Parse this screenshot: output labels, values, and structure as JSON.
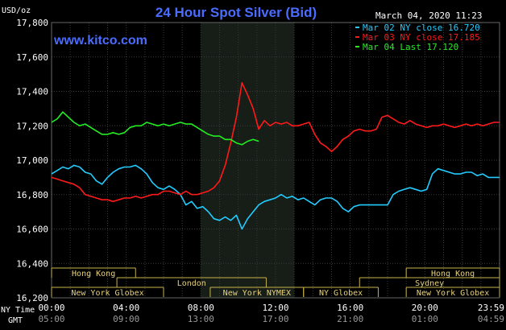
{
  "chart_data": {
    "type": "line",
    "title": "24 Hour Spot Silver (Bid)",
    "website": "www.kitco.com",
    "timestamp": "March 04, 2020 11:23",
    "unit_label": "USD/oz",
    "ylim": [
      16.2,
      17.8
    ],
    "y_ticks": [
      16.2,
      16.4,
      16.6,
      16.8,
      17.0,
      17.2,
      17.4,
      17.6,
      17.8
    ],
    "y_tick_labels": [
      "16,200",
      "16,400",
      "16,600",
      "16,800",
      "17,000",
      "17,200",
      "17,400",
      "17,600",
      "17,800"
    ],
    "xlim": [
      0,
      24
    ],
    "x_ticks": [
      0,
      4,
      8,
      12,
      16,
      20,
      24
    ],
    "x_row_labels": {
      "ny_time": "NY Time",
      "gmt": "GMT"
    },
    "x_tick_labels_ny": [
      "00:00",
      "04:00",
      "08:00",
      "12:00",
      "16:00",
      "20:00",
      "23:59"
    ],
    "x_tick_labels_gmt": [
      "05:00",
      "09:00",
      "13:00",
      "17:00",
      "21:00",
      "01:00",
      "04:59"
    ],
    "highlight_band": {
      "start": 8.0,
      "end": 13.0
    },
    "legend": [
      {
        "label": "Mar 02 NY close 16.720",
        "color": "#22ccff"
      },
      {
        "label": "Mar 03 NY close 17.185",
        "color": "#ff1a1a"
      },
      {
        "label": "Mar 04 Last 17.120",
        "color": "#22ee22"
      }
    ],
    "sessions": [
      {
        "label": "Hong Kong",
        "start": 0.0,
        "end": 4.5,
        "row": 0
      },
      {
        "label": "Hong Kong",
        "start": 19.0,
        "end": 24.0,
        "row": 0
      },
      {
        "label": "London",
        "start": 3.5,
        "end": 11.5,
        "row": 1
      },
      {
        "label": "Sydney",
        "start": 16.5,
        "end": 24.0,
        "row": 1
      },
      {
        "label": "New York Globex",
        "start": 0.0,
        "end": 6.0,
        "row": 2
      },
      {
        "label": "New York NYMEX",
        "start": 8.5,
        "end": 13.5,
        "row": 2
      },
      {
        "label": "NY Globex",
        "start": 13.5,
        "end": 17.5,
        "row": 2
      },
      {
        "label": "New York Globex",
        "start": 19.0,
        "end": 24.0,
        "row": 2
      }
    ],
    "series": [
      {
        "color": "#22ccff",
        "x": [
          0,
          0.3,
          0.6,
          0.9,
          1.2,
          1.5,
          1.8,
          2.1,
          2.4,
          2.7,
          3.0,
          3.3,
          3.6,
          3.9,
          4.2,
          4.5,
          4.8,
          5.1,
          5.4,
          5.7,
          6.0,
          6.3,
          6.6,
          6.9,
          7.2,
          7.5,
          7.8,
          8.1,
          8.4,
          8.7,
          9.0,
          9.3,
          9.6,
          9.9,
          10.2,
          10.5,
          10.8,
          11.1,
          11.4,
          11.7,
          12.0,
          12.3,
          12.6,
          12.9,
          13.2,
          13.5,
          13.8,
          14.1,
          14.4,
          14.7,
          15.0,
          15.3,
          15.6,
          15.9,
          16.2,
          16.5,
          16.8,
          17.1,
          17.4,
          17.7,
          18.0,
          18.3,
          18.6,
          18.9,
          19.2,
          19.5,
          19.8,
          20.1,
          20.4,
          20.7,
          21.0,
          21.3,
          21.6,
          21.9,
          22.2,
          22.5,
          22.8,
          23.1,
          23.4,
          23.7,
          24.0
        ],
        "y": [
          16.92,
          16.94,
          16.96,
          16.95,
          16.97,
          16.96,
          16.93,
          16.92,
          16.88,
          16.86,
          16.9,
          16.93,
          16.95,
          16.96,
          16.96,
          16.97,
          16.95,
          16.92,
          16.87,
          16.84,
          16.83,
          16.85,
          16.83,
          16.8,
          16.74,
          16.76,
          16.72,
          16.73,
          16.7,
          16.66,
          16.65,
          16.67,
          16.65,
          16.68,
          16.6,
          16.66,
          16.7,
          16.74,
          16.76,
          16.77,
          16.78,
          16.8,
          16.78,
          16.79,
          16.77,
          16.78,
          16.76,
          16.74,
          16.77,
          16.78,
          16.78,
          16.76,
          16.72,
          16.7,
          16.73,
          16.74,
          16.74,
          16.74,
          16.74,
          16.74,
          16.74,
          16.8,
          16.82,
          16.83,
          16.84,
          16.83,
          16.82,
          16.83,
          16.92,
          16.95,
          16.94,
          16.93,
          16.92,
          16.92,
          16.93,
          16.93,
          16.91,
          16.92,
          16.9,
          16.9,
          16.9
        ]
      },
      {
        "color": "#ff1a1a",
        "x": [
          0,
          0.3,
          0.6,
          0.9,
          1.2,
          1.5,
          1.8,
          2.1,
          2.4,
          2.7,
          3.0,
          3.3,
          3.6,
          3.9,
          4.2,
          4.5,
          4.8,
          5.1,
          5.4,
          5.7,
          6.0,
          6.3,
          6.6,
          6.9,
          7.2,
          7.5,
          7.8,
          8.1,
          8.4,
          8.7,
          9.0,
          9.3,
          9.6,
          9.9,
          10.2,
          10.5,
          10.8,
          11.1,
          11.4,
          11.7,
          12.0,
          12.3,
          12.6,
          12.9,
          13.2,
          13.5,
          13.8,
          14.1,
          14.4,
          14.7,
          15.0,
          15.3,
          15.6,
          15.9,
          16.2,
          16.5,
          16.8,
          17.1,
          17.4,
          17.7,
          18.0,
          18.3,
          18.6,
          18.9,
          19.2,
          19.5,
          19.8,
          20.1,
          20.4,
          20.7,
          21.0,
          21.3,
          21.6,
          21.9,
          22.2,
          22.5,
          22.8,
          23.1,
          23.4,
          23.7,
          24.0
        ],
        "y": [
          16.9,
          16.89,
          16.88,
          16.87,
          16.86,
          16.84,
          16.8,
          16.79,
          16.78,
          16.77,
          16.77,
          16.76,
          16.77,
          16.78,
          16.78,
          16.79,
          16.78,
          16.79,
          16.8,
          16.8,
          16.82,
          16.82,
          16.81,
          16.8,
          16.82,
          16.8,
          16.8,
          16.81,
          16.82,
          16.84,
          16.88,
          16.97,
          17.1,
          17.25,
          17.45,
          17.38,
          17.3,
          17.18,
          17.23,
          17.2,
          17.22,
          17.21,
          17.22,
          17.2,
          17.2,
          17.21,
          17.22,
          17.15,
          17.1,
          17.08,
          17.05,
          17.08,
          17.12,
          17.14,
          17.17,
          17.18,
          17.17,
          17.17,
          17.18,
          17.25,
          17.26,
          17.24,
          17.22,
          17.21,
          17.23,
          17.21,
          17.2,
          17.19,
          17.2,
          17.2,
          17.21,
          17.2,
          17.19,
          17.2,
          17.21,
          17.2,
          17.21,
          17.2,
          17.21,
          17.22,
          17.22
        ]
      },
      {
        "color": "#22ee22",
        "x": [
          0,
          0.3,
          0.6,
          0.9,
          1.2,
          1.5,
          1.8,
          2.1,
          2.4,
          2.7,
          3.0,
          3.3,
          3.6,
          3.9,
          4.2,
          4.5,
          4.8,
          5.1,
          5.4,
          5.7,
          6.0,
          6.3,
          6.6,
          6.9,
          7.2,
          7.5,
          7.8,
          8.1,
          8.4,
          8.7,
          9.0,
          9.3,
          9.6,
          9.9,
          10.2,
          10.5,
          10.8,
          11.1
        ],
        "y": [
          17.22,
          17.24,
          17.28,
          17.25,
          17.22,
          17.2,
          17.21,
          17.19,
          17.17,
          17.15,
          17.15,
          17.16,
          17.15,
          17.16,
          17.19,
          17.2,
          17.2,
          17.22,
          17.21,
          17.2,
          17.21,
          17.2,
          17.21,
          17.22,
          17.21,
          17.21,
          17.19,
          17.17,
          17.15,
          17.14,
          17.14,
          17.12,
          17.12,
          17.1,
          17.09,
          17.11,
          17.12,
          17.11
        ]
      }
    ]
  }
}
